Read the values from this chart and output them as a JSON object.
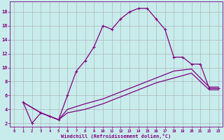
{
  "xlabel": "Windchill (Refroidissement éolien,°C)",
  "bg_color": "#c8ecec",
  "line_color": "#800080",
  "grid_color": "#aaaaaa",
  "xlim": [
    -0.5,
    23.5
  ],
  "ylim": [
    1.5,
    19.5
  ],
  "xticks": [
    0,
    1,
    2,
    3,
    4,
    5,
    6,
    7,
    8,
    9,
    10,
    11,
    12,
    13,
    14,
    15,
    16,
    17,
    18,
    19,
    20,
    21,
    22,
    23
  ],
  "yticks": [
    2,
    4,
    6,
    8,
    10,
    12,
    14,
    16,
    18
  ],
  "curve1_x": [
    1,
    2,
    3,
    4,
    5,
    6,
    7,
    8,
    9,
    10,
    11,
    12,
    13,
    14,
    15,
    16,
    17,
    18,
    19,
    20,
    21,
    22,
    23
  ],
  "curve1_y": [
    5,
    2,
    3.5,
    3,
    2.5,
    6,
    9.5,
    11,
    13,
    16,
    15.5,
    17,
    18,
    18.5,
    18.5,
    17,
    15.5,
    11.5,
    11.5,
    10.5,
    10.5,
    7,
    7
  ],
  "curve2_x": [
    1,
    3,
    4,
    5,
    6,
    8,
    10,
    12,
    14,
    16,
    18,
    20,
    22,
    23
  ],
  "curve2_y": [
    5,
    3.5,
    3,
    2.5,
    4.0,
    4.8,
    5.5,
    6.5,
    7.5,
    8.5,
    9.5,
    9.8,
    7.2,
    7.2
  ],
  "curve3_x": [
    1,
    3,
    4,
    5,
    6,
    8,
    10,
    12,
    14,
    16,
    18,
    20,
    22,
    23
  ],
  "curve3_y": [
    5,
    3.5,
    3,
    2.5,
    3.5,
    4.0,
    4.8,
    5.8,
    6.8,
    7.8,
    8.5,
    9.2,
    6.8,
    6.8
  ]
}
